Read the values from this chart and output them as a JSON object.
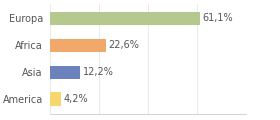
{
  "categories": [
    "Europa",
    "Africa",
    "Asia",
    "America"
  ],
  "values": [
    61.1,
    22.6,
    12.2,
    4.2
  ],
  "labels": [
    "61,1%",
    "22,6%",
    "12,2%",
    "4,2%"
  ],
  "bar_colors": [
    "#b5c98e",
    "#f0a96a",
    "#6b82bc",
    "#f5d76e"
  ],
  "background_color": "#ffffff",
  "xlim": [
    0,
    80
  ],
  "bar_height": 0.5,
  "label_fontsize": 7,
  "tick_fontsize": 7
}
